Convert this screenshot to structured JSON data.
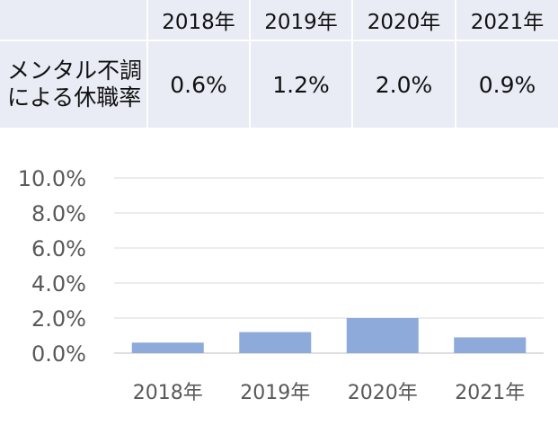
{
  "table": {
    "years": [
      "2018年",
      "2019年",
      "2020年",
      "2021年"
    ],
    "row_label_line1": "メンタル不調",
    "row_label_line2": "による休職率",
    "values": [
      "0.6%",
      "1.2%",
      "2.0%",
      "0.9%"
    ]
  },
  "chart_data": {
    "type": "bar",
    "categories": [
      "2018年",
      "2019年",
      "2020年",
      "2021年"
    ],
    "values": [
      0.6,
      1.2,
      2.0,
      0.9
    ],
    "yticks": [
      "0.0%",
      "2.0%",
      "4.0%",
      "6.0%",
      "8.0%",
      "10.0%"
    ],
    "ylim": [
      0,
      10
    ],
    "title": "",
    "xlabel": "",
    "ylabel": "",
    "bar_color": "#8eaadb",
    "grid": true,
    "legend": "none"
  }
}
